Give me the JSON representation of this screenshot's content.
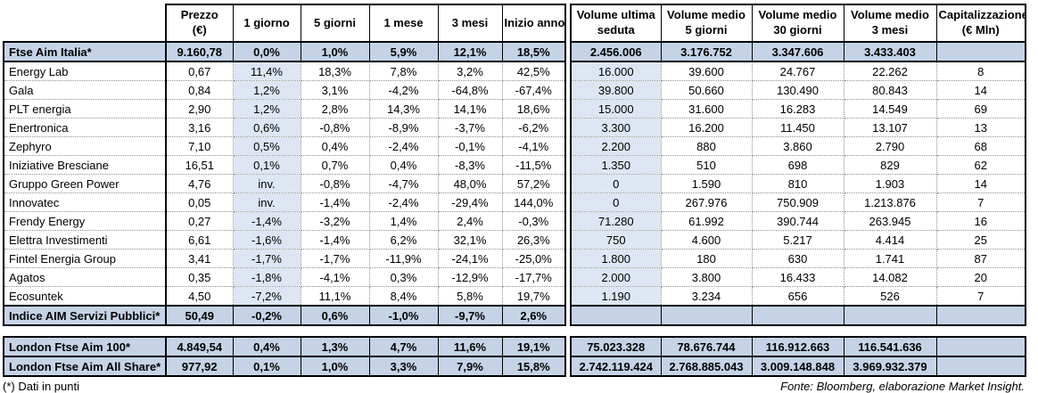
{
  "columns": [
    {
      "id": "name",
      "label": ""
    },
    {
      "id": "prezzo",
      "label": "Prezzo",
      "sub": "(€)"
    },
    {
      "id": "g1",
      "label": "1 giorno"
    },
    {
      "id": "g5",
      "label": "5 giorni"
    },
    {
      "id": "m1",
      "label": "1 mese"
    },
    {
      "id": "m3",
      "label": "3 mesi"
    },
    {
      "id": "ia",
      "label": "Inizio anno"
    },
    {
      "id": "vus",
      "label": "Volume ultima",
      "sub": "seduta"
    },
    {
      "id": "vm5",
      "label": "Volume medio",
      "sub": "5 giorni"
    },
    {
      "id": "vm30",
      "label": "Volume medio",
      "sub": "30 giorni"
    },
    {
      "id": "vm3",
      "label": "Volume medio",
      "sub": "3 mesi"
    },
    {
      "id": "cap",
      "label": "Capitalizzazione",
      "sub": "(€ Mln)"
    }
  ],
  "rows_main": [
    {
      "name": "Ftse Aim Italia*",
      "type": "index",
      "values": [
        "9.160,78",
        "0,0%",
        "1,0%",
        "5,9%",
        "12,1%",
        "18,5%",
        "2.456.006",
        "3.176.752",
        "3.347.606",
        "3.433.403",
        ""
      ]
    },
    {
      "name": "Energy Lab",
      "type": "stock",
      "values": [
        "0,67",
        "11,4%",
        "18,3%",
        "7,8%",
        "3,2%",
        "42,5%",
        "16.000",
        "39.600",
        "24.767",
        "22.262",
        "8"
      ]
    },
    {
      "name": "Gala",
      "type": "stock",
      "values": [
        "0,84",
        "1,2%",
        "3,1%",
        "-4,2%",
        "-64,8%",
        "-67,4%",
        "39.800",
        "50.660",
        "130.490",
        "80.843",
        "14"
      ]
    },
    {
      "name": "PLT energia",
      "type": "stock",
      "values": [
        "2,90",
        "1,2%",
        "2,8%",
        "14,3%",
        "14,1%",
        "18,6%",
        "15.000",
        "31.600",
        "16.283",
        "14.549",
        "69"
      ]
    },
    {
      "name": "Enertronica",
      "type": "stock",
      "values": [
        "3,16",
        "0,6%",
        "-0,8%",
        "-8,9%",
        "-3,7%",
        "-6,2%",
        "3.300",
        "16.200",
        "11.450",
        "13.107",
        "13"
      ]
    },
    {
      "name": "Zephyro",
      "type": "stock",
      "values": [
        "7,10",
        "0,5%",
        "0,4%",
        "-2,4%",
        "-0,1%",
        "-4,1%",
        "2.200",
        "880",
        "3.860",
        "2.790",
        "68"
      ]
    },
    {
      "name": "Iniziative Bresciane",
      "type": "stock",
      "values": [
        "16,51",
        "0,1%",
        "0,7%",
        "0,4%",
        "-8,3%",
        "-11,5%",
        "1.350",
        "510",
        "698",
        "829",
        "62"
      ]
    },
    {
      "name": "Gruppo Green Power",
      "type": "stock",
      "values": [
        "4,76",
        "inv.",
        "-0,8%",
        "-4,7%",
        "48,0%",
        "57,2%",
        "0",
        "1.590",
        "810",
        "1.903",
        "14"
      ]
    },
    {
      "name": "Innovatec",
      "type": "stock",
      "values": [
        "0,05",
        "inv.",
        "-1,4%",
        "-2,4%",
        "-29,4%",
        "144,0%",
        "0",
        "267.976",
        "750.909",
        "1.213.876",
        "7"
      ]
    },
    {
      "name": "Frendy Energy",
      "type": "stock",
      "values": [
        "0,27",
        "-1,4%",
        "-3,2%",
        "1,4%",
        "2,4%",
        "-0,3%",
        "71.280",
        "61.992",
        "390.744",
        "263.945",
        "16"
      ]
    },
    {
      "name": "Elettra Investimenti",
      "type": "stock",
      "values": [
        "6,61",
        "-1,6%",
        "-1,4%",
        "6,2%",
        "32,1%",
        "26,3%",
        "750",
        "4.600",
        "5.217",
        "4.414",
        "25"
      ]
    },
    {
      "name": "Fintel Energia Group",
      "type": "stock",
      "values": [
        "3,41",
        "-1,7%",
        "-1,7%",
        "-11,9%",
        "-24,1%",
        "-25,0%",
        "1.800",
        "180",
        "630",
        "1.741",
        "87"
      ]
    },
    {
      "name": "Agatos",
      "type": "stock",
      "values": [
        "0,35",
        "-1,8%",
        "-4,1%",
        "0,3%",
        "-12,9%",
        "-17,7%",
        "2.000",
        "3.800",
        "16.433",
        "14.082",
        "20"
      ]
    },
    {
      "name": "Ecosuntek",
      "type": "stock",
      "values": [
        "4,50",
        "-7,2%",
        "11,1%",
        "8,4%",
        "5,8%",
        "19,7%",
        "1.190",
        "3.234",
        "656",
        "526",
        "7"
      ]
    },
    {
      "name": "Indice AIM Servizi Pubblici*",
      "type": "index",
      "values": [
        "50,49",
        "-0,2%",
        "0,6%",
        "-1,0%",
        "-9,7%",
        "2,6%",
        "",
        "",
        "",
        "",
        ""
      ]
    }
  ],
  "rows_london": [
    {
      "name": "London Ftse Aim 100*",
      "type": "index",
      "values": [
        "4.849,54",
        "0,4%",
        "1,3%",
        "4,7%",
        "11,6%",
        "19,1%",
        "75.023.328",
        "78.676.744",
        "116.912.663",
        "116.541.636",
        ""
      ]
    },
    {
      "name": "London Ftse Aim All Share*",
      "type": "index",
      "values": [
        "977,92",
        "0,1%",
        "1,0%",
        "3,3%",
        "7,9%",
        "15,8%",
        "2.742.119.424",
        "2.768.885.043",
        "3.009.148.848",
        "3.969.932.379",
        ""
      ]
    }
  ],
  "footnote": "(*) Dati in punti",
  "source": "Fonte: Bloomberg, elaborazione Market Insight.",
  "colors": {
    "index_row_bg": "#c6d3e7",
    "highlight_col_bg": "#dde6f2",
    "border": "#000000"
  }
}
